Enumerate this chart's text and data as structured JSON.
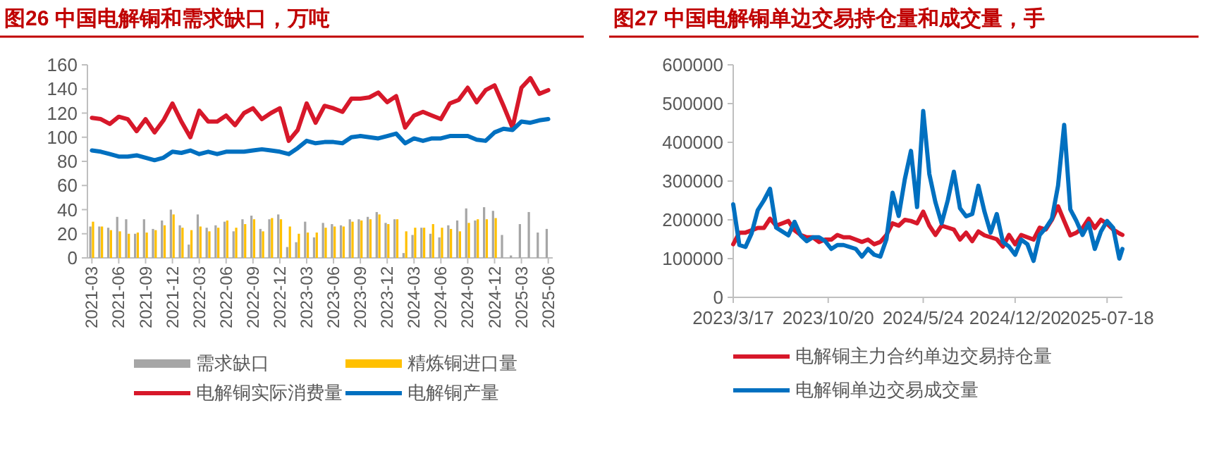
{
  "chart_data": [
    {
      "type": "bar",
      "title": "图26  中国电解铜和需求缺口，万吨",
      "categories": [
        "2021-03",
        null,
        null,
        "2021-06",
        null,
        null,
        "2021-09",
        null,
        null,
        "2021-12",
        null,
        null,
        "2022-03",
        null,
        null,
        "2022-06",
        null,
        null,
        "2022-09",
        null,
        null,
        "2022-12",
        null,
        null,
        "2023-03",
        null,
        null,
        "2023-06",
        null,
        null,
        "2023-09",
        null,
        null,
        "2023-12",
        null,
        null,
        "2024-03",
        null,
        null,
        "2024-06",
        null,
        null,
        "2024-09",
        null,
        null,
        "2024-12",
        null,
        null,
        "2025-03",
        null,
        null,
        "2025-06"
      ],
      "series": [
        {
          "name": "需求缺口",
          "color": "#a6a6a6",
          "values": [
            26,
            26,
            25,
            34,
            32,
            20,
            32,
            24,
            31,
            40,
            27,
            11,
            36,
            25,
            27,
            30,
            22,
            32,
            35,
            24,
            32,
            36,
            9,
            13,
            30,
            17,
            29,
            28,
            27,
            32,
            32,
            34,
            38,
            29,
            32,
            4,
            19,
            25,
            20,
            17,
            27,
            31,
            41,
            31,
            42,
            39,
            19,
            2,
            28,
            38,
            21,
            24
          ]
        },
        {
          "name": "精炼铜进口量",
          "color": "#ffc000",
          "values": [
            30,
            26,
            23,
            22,
            20,
            21,
            21,
            23,
            27,
            36,
            25,
            23,
            26,
            22,
            25,
            31,
            25,
            28,
            32,
            22,
            33,
            32,
            26,
            20,
            21,
            21,
            25,
            26,
            26,
            30,
            31,
            32,
            36,
            28,
            32,
            22,
            25,
            25,
            28,
            25,
            24,
            22,
            29,
            32,
            32,
            33,
            null,
            null,
            null,
            null,
            null,
            null
          ]
        },
        {
          "name": "电解铜实际消费量",
          "type": "line",
          "color": "#d7182a",
          "values": [
            116,
            115,
            111,
            117,
            115,
            105,
            115,
            104,
            114,
            128,
            113,
            100,
            122,
            113,
            113,
            118,
            110,
            120,
            124,
            115,
            120,
            124,
            97,
            106,
            128,
            112,
            126,
            124,
            121,
            132,
            132,
            133,
            137,
            129,
            134,
            108,
            118,
            121,
            118,
            115,
            128,
            131,
            141,
            129,
            139,
            143,
            126,
            108,
            141,
            149,
            136,
            139
          ]
        },
        {
          "name": "电解铜产量",
          "type": "line",
          "color": "#0070c0",
          "values": [
            89,
            88,
            86,
            84,
            84,
            85,
            83,
            81,
            83,
            88,
            87,
            89,
            86,
            88,
            86,
            88,
            88,
            88,
            89,
            90,
            89,
            88,
            86,
            91,
            97,
            95,
            96,
            96,
            95,
            100,
            101,
            100,
            99,
            101,
            103,
            95,
            99,
            97,
            99,
            99,
            101,
            101,
            101,
            98,
            97,
            104,
            107,
            106,
            113,
            112,
            114,
            115
          ]
        }
      ],
      "ylim": [
        0,
        160
      ],
      "yticks": [
        0,
        20,
        40,
        60,
        80,
        100,
        120,
        140,
        160
      ],
      "legend": "bottom"
    },
    {
      "type": "line",
      "title": "图27  中国电解铜单边交易持仓量和成交量，手",
      "x": [
        "2023-03-17",
        "2023-03-31",
        "2023-04-14",
        "2023-04-28",
        "2023-05-12",
        "2023-05-26",
        "2023-06-09",
        "2023-06-23",
        "2023-07-07",
        "2023-07-21",
        "2023-08-04",
        "2023-08-18",
        "2023-09-01",
        "2023-09-15",
        "2023-09-29",
        "2023-10-13",
        "2023-10-27",
        "2023-11-10",
        "2023-11-24",
        "2023-12-08",
        "2023-12-22",
        "2024-01-05",
        "2024-01-19",
        "2024-02-02",
        "2024-02-16",
        "2024-03-01",
        "2024-03-15",
        "2024-03-29",
        "2024-04-12",
        "2024-04-26",
        "2024-05-10",
        "2024-05-24",
        "2024-06-07",
        "2024-06-21",
        "2024-07-05",
        "2024-07-19",
        "2024-08-02",
        "2024-08-16",
        "2024-08-30",
        "2024-09-13",
        "2024-09-27",
        "2024-10-11",
        "2024-10-25",
        "2024-11-08",
        "2024-11-22",
        "2024-12-06",
        "2024-12-20",
        "2025-01-03",
        "2025-01-17",
        "2025-01-31",
        "2025-02-14",
        "2025-02-28",
        "2025-03-14",
        "2025-03-28",
        "2025-04-11",
        "2025-04-25",
        "2025-05-09",
        "2025-05-23",
        "2025-06-06",
        "2025-06-20",
        "2025-07-04",
        "2025-07-18",
        "2025-08-01",
        "2025-08-15",
        "2025-08-22"
      ],
      "series": [
        {
          "name": "电解铜主力合约单边交易持仓量",
          "color": "#d7182a",
          "values": [
            137000,
            167000,
            167000,
            173000,
            179000,
            179000,
            203000,
            185000,
            191000,
            197000,
            173000,
            161000,
            155000,
            155000,
            143000,
            149000,
            149000,
            161000,
            155000,
            155000,
            149000,
            143000,
            149000,
            137000,
            143000,
            161000,
            191000,
            185000,
            200000,
            197000,
            191000,
            221000,
            185000,
            161000,
            185000,
            180000,
            175000,
            149000,
            167000,
            145000,
            170000,
            160000,
            155000,
            150000,
            131000,
            161000,
            137000,
            161000,
            155000,
            149000,
            180000,
            175000,
            200000,
            235000,
            197000,
            160000,
            167000,
            179000,
            203000,
            179000,
            200000,
            190000,
            175000,
            165000,
            161000
          ]
        },
        {
          "name": "电解铜单边交易成交量",
          "color": "#0070c0",
          "values": [
            240000,
            135000,
            130000,
            165000,
            225000,
            250000,
            280000,
            180000,
            170000,
            160000,
            195000,
            160000,
            145000,
            155000,
            155000,
            145000,
            125000,
            135000,
            135000,
            130000,
            125000,
            105000,
            125000,
            110000,
            105000,
            150000,
            270000,
            210000,
            305000,
            378000,
            233000,
            481000,
            318000,
            245000,
            191000,
            250000,
            324000,
            230000,
            209000,
            215000,
            288000,
            221000,
            167000,
            215000,
            143000,
            131000,
            110000,
            149000,
            137000,
            94000,
            161000,
            179000,
            203000,
            288000,
            445000,
            227000,
            197000,
            161000,
            191000,
            125000,
            170000,
            197000,
            179000,
            100000,
            125000
          ]
        }
      ],
      "xlim": [
        "2023-03-17",
        "2025-08-22"
      ],
      "xticks": [
        {
          "value": "2023-03-17",
          "label": "2023/3/17"
        },
        {
          "value": "2023-10-20",
          "label": "2023/10/20"
        },
        {
          "value": "2024-05-24",
          "label": "2024/5/24"
        },
        {
          "value": "2024-12-20",
          "label": "2024/12/20"
        },
        {
          "value": "2025-07-18",
          "label": "2025-07-18"
        }
      ],
      "ylim": [
        0,
        600000
      ],
      "yticks": [
        0,
        100000,
        200000,
        300000,
        400000,
        500000,
        600000
      ],
      "legend": "bottom"
    }
  ]
}
